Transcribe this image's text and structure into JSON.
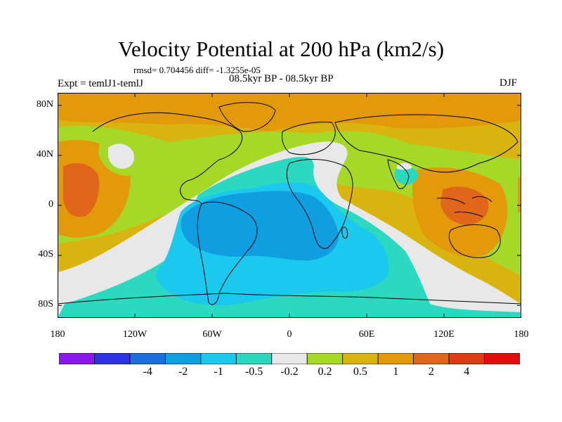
{
  "title": "Velocity Potential at 200 hPa (km2/s)",
  "rmsd_text": "rmsd= 0.704456 diff= -1.3255e-05",
  "expt_text": "Expt = temlJ1-temlJ",
  "period_text": "08.5kyr BP - 08.5kyr BP",
  "season": "DJF",
  "lat_ticks": [
    {
      "label": "80N",
      "lat": 80
    },
    {
      "label": "40N",
      "lat": 40
    },
    {
      "label": "0",
      "lat": 0
    },
    {
      "label": "40S",
      "lat": -40
    },
    {
      "label": "80S",
      "lat": -80
    }
  ],
  "lon_ticks": [
    {
      "label": "180",
      "lon": -180
    },
    {
      "label": "120W",
      "lon": -120
    },
    {
      "label": "60W",
      "lon": -60
    },
    {
      "label": "0",
      "lon": 0
    },
    {
      "label": "60E",
      "lon": 60
    },
    {
      "label": "120E",
      "lon": 120
    },
    {
      "label": "180",
      "lon": 180
    }
  ],
  "colorbar": {
    "colors": [
      "#8a17ee",
      "#2f33e8",
      "#1a6ee0",
      "#0f9ee0",
      "#1bc8ee",
      "#2ad9c0",
      "#e8e8e8",
      "#a6d828",
      "#d9b40f",
      "#e39a0a",
      "#e0661a",
      "#e03a14",
      "#e40c0c"
    ],
    "labels": [
      "-4",
      "-2",
      "-1",
      "-0.5",
      "-0.2",
      "0.2",
      "0.5",
      "1",
      "2",
      "4"
    ]
  },
  "field_colors": {
    "orange": "#e39a0a",
    "gold": "#d9b40f",
    "green": "#a6d828",
    "white": "#e8e8e8",
    "teal": "#2ad9c0",
    "cyan": "#1bc8ee",
    "blue": "#0f9ee0",
    "dark_orange": "#e0661a",
    "red_orange": "#e03a14"
  }
}
